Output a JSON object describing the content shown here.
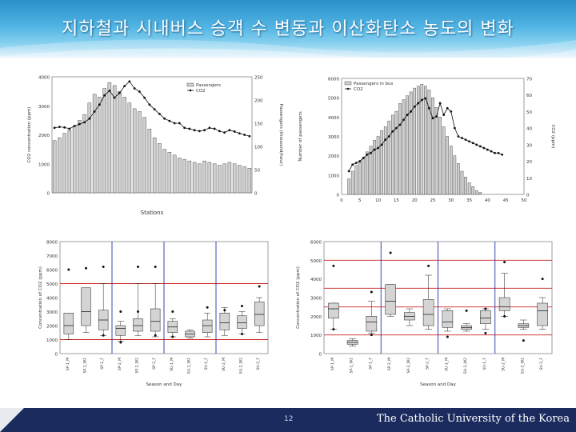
{
  "slide": {
    "title": "지하철과 시내버스 승객 수 변동과 이산화탄소 농도의 변화",
    "page_number": "12",
    "institution": "The Catholic University of the Korea",
    "colors": {
      "banner": "#3aa3d8",
      "footer": "#1b2b5e",
      "ref_line_red": "#cc2222",
      "ref_line_blue": "#2233aa"
    }
  },
  "chart_data": [
    {
      "type": "bar",
      "xlabel": "Stations",
      "ylabel": "CO2 concentration (ppm)",
      "y2label": "Passengers (thousand/hour)",
      "ylim": [
        0,
        4000
      ],
      "yticks": [
        0,
        1000,
        2000,
        3000,
        4000
      ],
      "y2lim": [
        0,
        250
      ],
      "y2ticks": [
        0,
        50,
        100,
        150,
        200,
        250
      ],
      "legend": [
        "Passengers",
        "CO2"
      ],
      "legend_position": "top-right",
      "series": [
        {
          "name": "Passengers",
          "values": [
            1800,
            1900,
            2050,
            2150,
            2300,
            2500,
            2700,
            3100,
            3400,
            3300,
            3600,
            3800,
            3700,
            3500,
            3300,
            3100,
            2900,
            2800,
            2600,
            2200,
            1900,
            1700,
            1500,
            1400,
            1300,
            1200,
            1150,
            1100,
            1050,
            1000,
            1100,
            1050,
            1000,
            950,
            1000,
            1050,
            1000,
            950,
            900,
            850
          ]
        },
        {
          "name": "CO2",
          "values": [
            140,
            142,
            141,
            138,
            144,
            148,
            152,
            160,
            175,
            190,
            210,
            220,
            205,
            215,
            230,
            240,
            225,
            218,
            205,
            190,
            180,
            170,
            160,
            155,
            150,
            150,
            140,
            138,
            135,
            133,
            135,
            140,
            138,
            133,
            130,
            135,
            132,
            128,
            125,
            122
          ]
        }
      ]
    },
    {
      "type": "bar",
      "ylabel": "Number of passengers",
      "y2label": "CO2 (ppm)",
      "ylim": [
        0,
        6000
      ],
      "yticks": [
        0,
        1000,
        2000,
        3000,
        4000,
        5000,
        6000
      ],
      "y2lim": [
        0,
        70
      ],
      "y2ticks": [
        0,
        10,
        20,
        30,
        40,
        50,
        60,
        70
      ],
      "xlim": [
        0,
        50
      ],
      "xticks": [
        0,
        5,
        10,
        15,
        20,
        25,
        30,
        35,
        40,
        45,
        50
      ],
      "legend": [
        "Passengers in bus",
        "CO2"
      ],
      "legend_position": "top-left",
      "series": [
        {
          "name": "Passengers in bus",
          "x": [
            2,
            3,
            4,
            5,
            6,
            7,
            8,
            9,
            10,
            11,
            12,
            13,
            14,
            15,
            16,
            17,
            18,
            19,
            20,
            21,
            22,
            23,
            24,
            25,
            26,
            27,
            28,
            29,
            30,
            31,
            32,
            33,
            34,
            35,
            36,
            37,
            38
          ],
          "values": [
            800,
            1200,
            1500,
            1700,
            1900,
            2200,
            2500,
            2800,
            3000,
            3300,
            3500,
            3800,
            4100,
            4300,
            4700,
            4900,
            5100,
            5300,
            5500,
            5600,
            5700,
            5600,
            5400,
            5000,
            4500,
            4000,
            3500,
            3000,
            2500,
            2000,
            1600,
            1200,
            900,
            600,
            400,
            200,
            100
          ]
        },
        {
          "name": "CO2",
          "x": [
            2,
            3,
            4,
            5,
            6,
            7,
            8,
            9,
            10,
            11,
            12,
            13,
            14,
            15,
            16,
            17,
            18,
            19,
            20,
            21,
            22,
            23,
            24,
            25,
            26,
            27,
            28,
            29,
            30,
            31,
            32,
            33,
            34,
            35,
            36,
            37,
            38,
            39,
            40,
            41,
            42,
            43,
            44
          ],
          "values": [
            14,
            18,
            19,
            20,
            22,
            24,
            25,
            27,
            28,
            30,
            33,
            35,
            38,
            40,
            42,
            45,
            48,
            50,
            53,
            55,
            57,
            58,
            52,
            46,
            47,
            55,
            48,
            52,
            50,
            40,
            35,
            34,
            33,
            32,
            31,
            30,
            29,
            28,
            27,
            26,
            25,
            25,
            24
          ]
        }
      ]
    },
    {
      "type": "box",
      "xlabel": "Season and Day",
      "ylabel": "Concentration of CO2 (ppm)",
      "ylim": [
        0,
        8000
      ],
      "yticks": [
        0,
        1000,
        2000,
        3000,
        4000,
        5000,
        6000,
        7000,
        8000
      ],
      "ref_lines": [
        1000,
        5000
      ],
      "categories": [
        "SP-1_M",
        "SP-1_W2",
        "SP-1_F",
        "SP-2_M",
        "SP-2_W2",
        "SP-2_F",
        "SU-1_M",
        "SU-1_W2",
        "SU-1_F",
        "SU-2_M",
        "SU-2_W2",
        "SU-2_F"
      ],
      "boxes": [
        {
          "min": 1000,
          "q1": 1400,
          "median": 2000,
          "q3": 2900,
          "max": 2900,
          "outliers": [
            6000
          ]
        },
        {
          "min": 1500,
          "q1": 2000,
          "median": 3000,
          "q3": 4700,
          "max": 4700,
          "outliers": [
            6100
          ]
        },
        {
          "min": 1300,
          "q1": 1700,
          "median": 2400,
          "q3": 3100,
          "max": 5000,
          "outliers": [
            6200,
            1300
          ]
        },
        {
          "min": 900,
          "q1": 1300,
          "median": 1800,
          "q3": 2000,
          "max": 2300,
          "outliers": [
            3000,
            800
          ]
        },
        {
          "min": 1300,
          "q1": 1600,
          "median": 2000,
          "q3": 2500,
          "max": 5000,
          "outliers": [
            6200,
            3000
          ]
        },
        {
          "min": 1200,
          "q1": 1600,
          "median": 2300,
          "q3": 3200,
          "max": 5000,
          "outliers": [
            6200,
            1300
          ]
        },
        {
          "min": 1200,
          "q1": 1500,
          "median": 1900,
          "q3": 2300,
          "max": 2500,
          "outliers": [
            3000,
            1200
          ]
        },
        {
          "min": 1100,
          "q1": 1200,
          "median": 1400,
          "q3": 1600,
          "max": 1700,
          "outliers": []
        },
        {
          "min": 1200,
          "q1": 1500,
          "median": 2000,
          "q3": 2400,
          "max": 2900,
          "outliers": [
            3300
          ]
        },
        {
          "min": 1300,
          "q1": 1700,
          "median": 2200,
          "q3": 2900,
          "max": 3300,
          "outliers": [
            3100
          ]
        },
        {
          "min": 1400,
          "q1": 1800,
          "median": 2200,
          "q3": 2700,
          "max": 3000,
          "outliers": [
            3400,
            1400
          ]
        },
        {
          "min": 1500,
          "q1": 2000,
          "median": 2800,
          "q3": 3700,
          "max": 4000,
          "outliers": [
            4800
          ]
        }
      ]
    },
    {
      "type": "box",
      "xlabel": "Season and Day",
      "ylabel": "Concentration of CO2 (ppm)",
      "ylim": [
        0,
        6000
      ],
      "yticks": [
        0,
        1000,
        2000,
        3000,
        4000,
        5000,
        6000
      ],
      "ref_lines": [
        1000,
        2500,
        3500,
        5000
      ],
      "categories": [
        "SP-1_M",
        "SP-1_W2",
        "SP-1_F",
        "SP-2_M",
        "SP-2_W2",
        "SP-2_F",
        "SU-1_M",
        "SU-1_W2",
        "SU-1_F",
        "SU-2_M",
        "SU-2_W2",
        "SU-2_F"
      ],
      "boxes": [
        {
          "min": 1300,
          "q1": 1900,
          "median": 2400,
          "q3": 2700,
          "max": 2700,
          "outliers": [
            4700,
            1300
          ]
        },
        {
          "min": 400,
          "q1": 500,
          "median": 600,
          "q3": 700,
          "max": 800,
          "outliers": []
        },
        {
          "min": 1100,
          "q1": 1200,
          "median": 1700,
          "q3": 2000,
          "max": 2800,
          "outliers": [
            3300,
            1000
          ]
        },
        {
          "min": 2000,
          "q1": 2100,
          "median": 2800,
          "q3": 3700,
          "max": 3700,
          "outliers": [
            5400
          ]
        },
        {
          "min": 1500,
          "q1": 1800,
          "median": 2000,
          "q3": 2200,
          "max": 2400,
          "outliers": []
        },
        {
          "min": 1300,
          "q1": 1500,
          "median": 2100,
          "q3": 2900,
          "max": 4200,
          "outliers": [
            4700
          ]
        },
        {
          "min": 1200,
          "q1": 1400,
          "median": 1700,
          "q3": 2300,
          "max": 2400,
          "outliers": [
            900
          ]
        },
        {
          "min": 1200,
          "q1": 1300,
          "median": 1400,
          "q3": 1500,
          "max": 1600,
          "outliers": [
            2300
          ]
        },
        {
          "min": 1300,
          "q1": 1600,
          "median": 1900,
          "q3": 2300,
          "max": 2400,
          "outliers": [
            2400,
            1100
          ]
        },
        {
          "min": 2000,
          "q1": 2300,
          "median": 2500,
          "q3": 3000,
          "max": 4300,
          "outliers": [
            4900,
            2000
          ]
        },
        {
          "min": 1300,
          "q1": 1400,
          "median": 1500,
          "q3": 1600,
          "max": 1800,
          "outliers": [
            700
          ]
        },
        {
          "min": 1300,
          "q1": 1500,
          "median": 2300,
          "q3": 2700,
          "max": 3000,
          "outliers": [
            4000
          ]
        }
      ]
    }
  ]
}
